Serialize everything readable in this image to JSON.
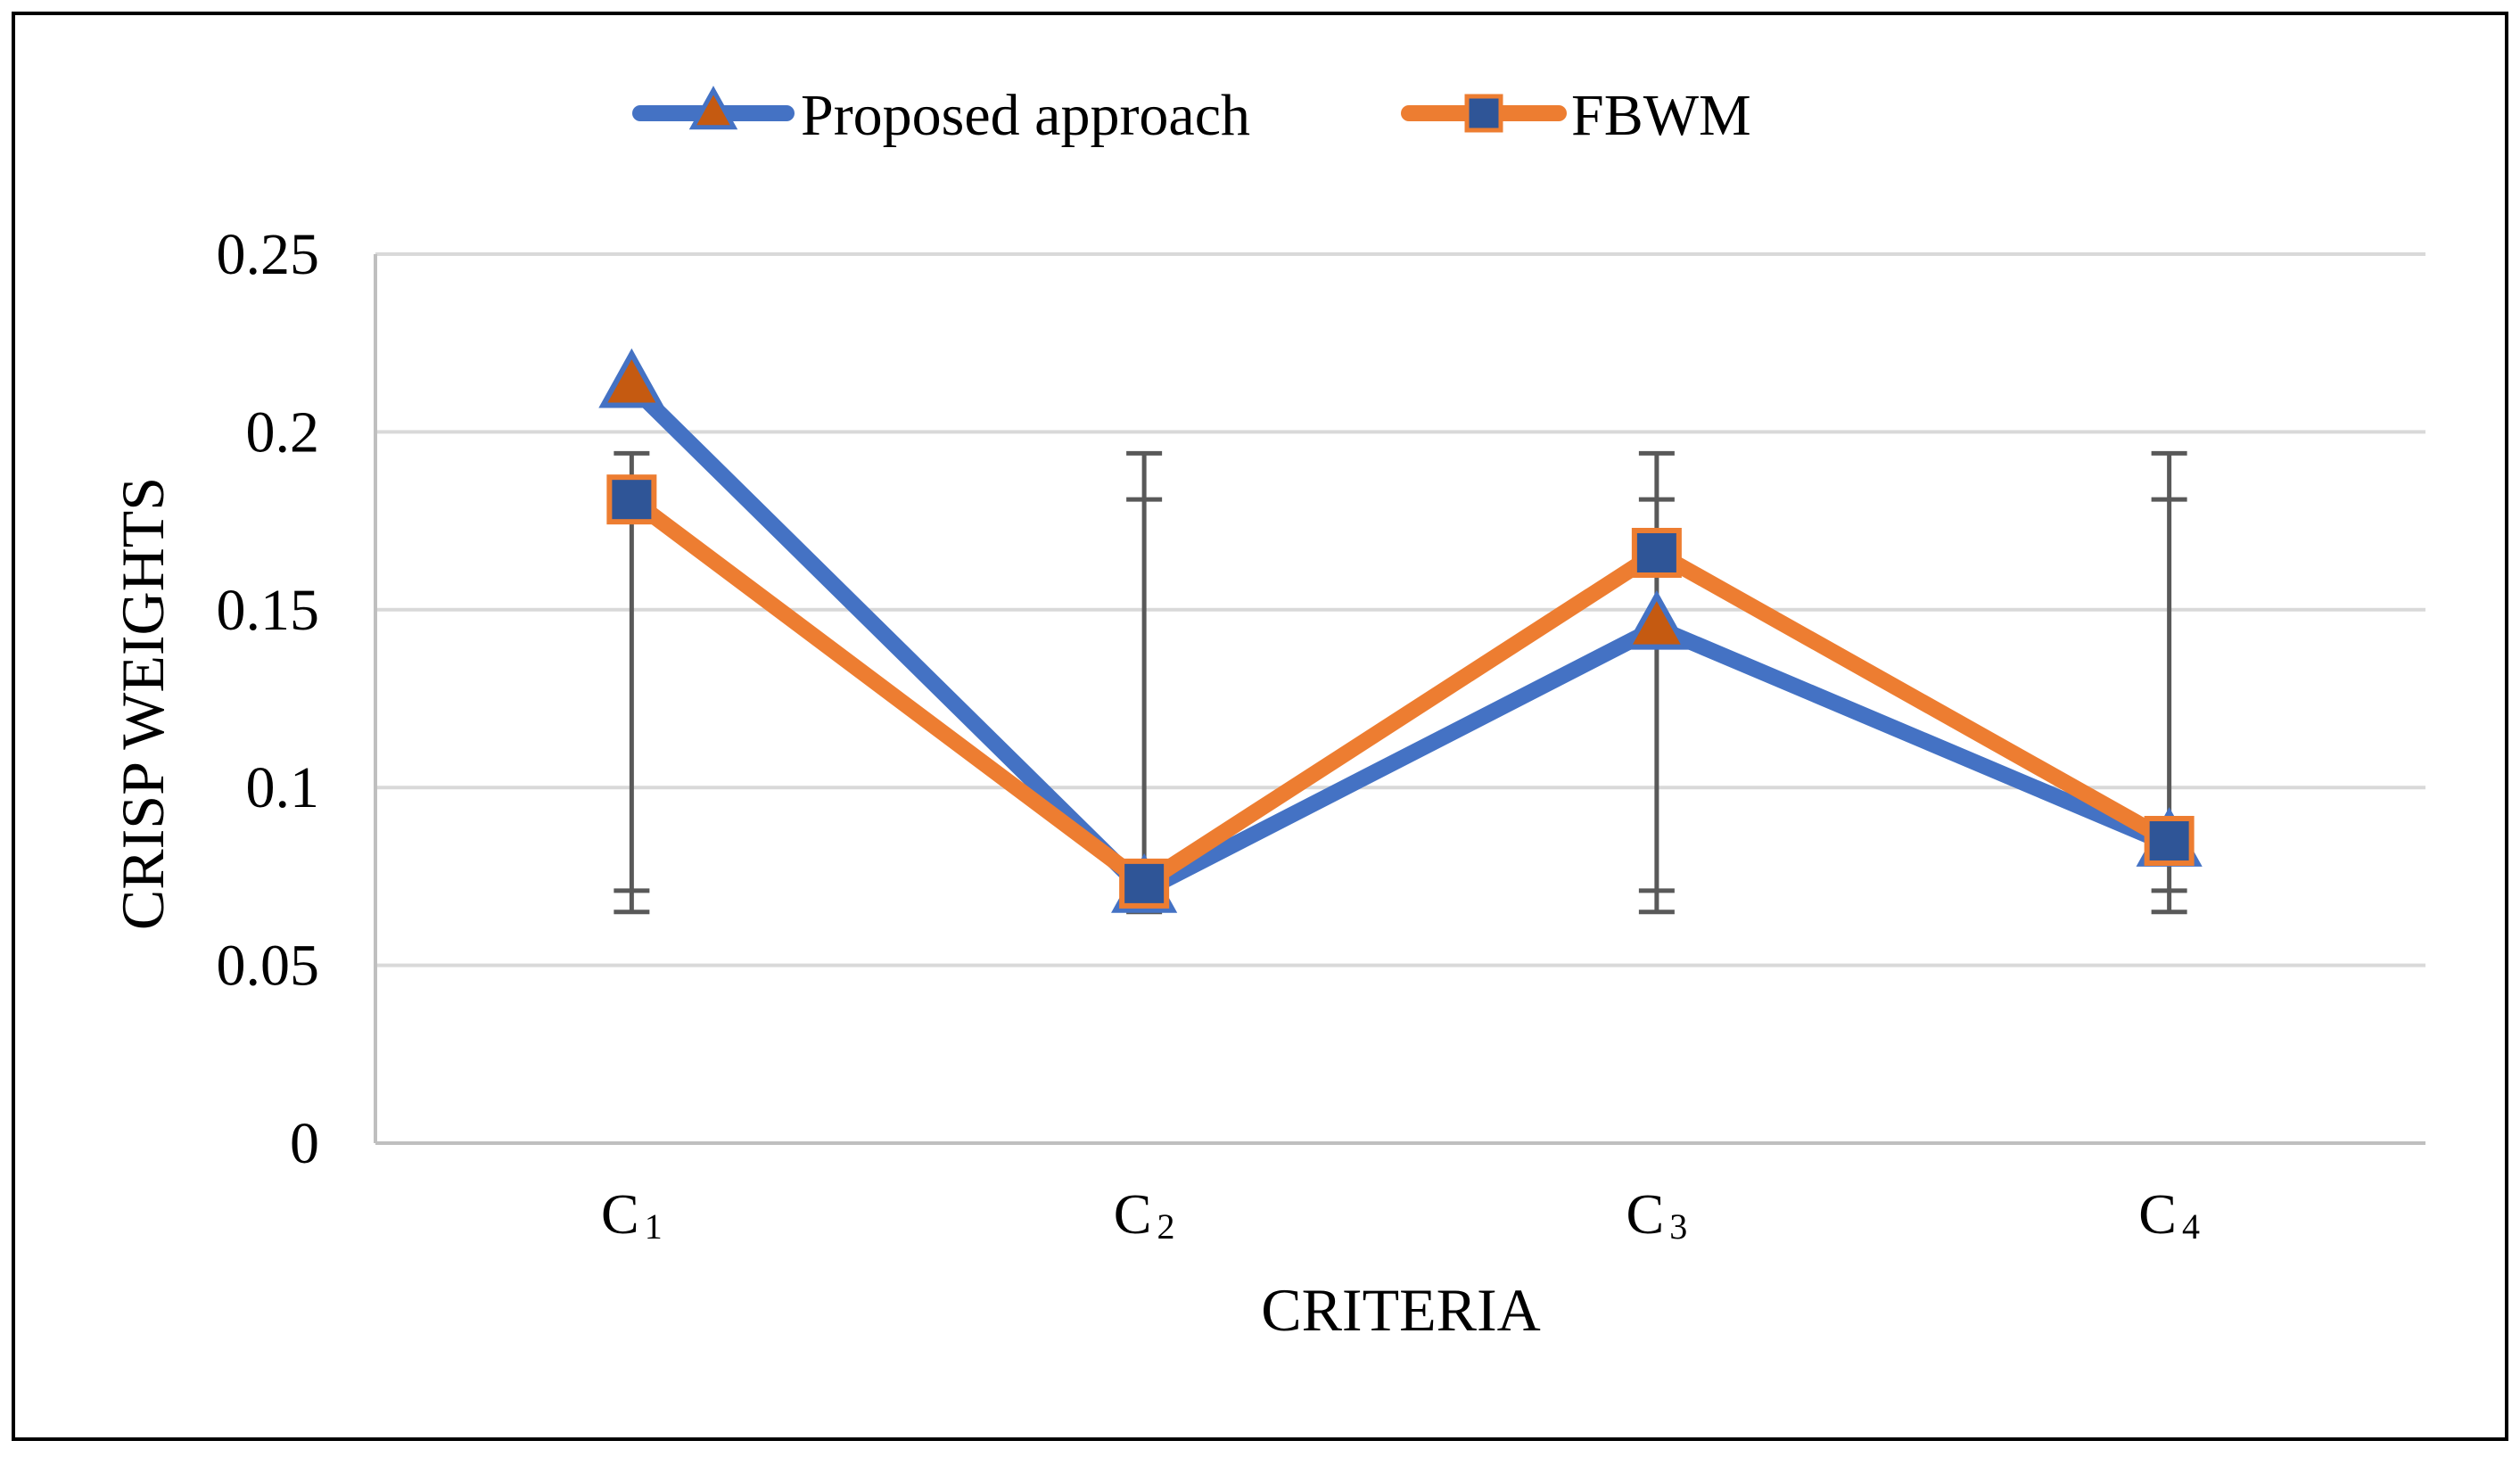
{
  "chart_data": {
    "type": "line",
    "title": "",
    "xlabel": "CRITERIA",
    "ylabel": "CRISP WEIGHTS",
    "categories": [
      {
        "letter": "C",
        "sub": "1"
      },
      {
        "letter": "C",
        "sub": "2"
      },
      {
        "letter": "C",
        "sub": "3"
      },
      {
        "letter": "C",
        "sub": "4"
      }
    ],
    "ylim": [
      0,
      0.25
    ],
    "yticks": [
      0,
      0.05,
      0.1,
      0.15,
      0.2,
      0.25
    ],
    "ytick_labels": [
      "0",
      "0.05",
      "0.1",
      "0.15",
      "0.2",
      "0.25"
    ],
    "grid": true,
    "legend_position": "top-center",
    "series": [
      {
        "name": "Proposed approach",
        "marker": "triangle",
        "line_color": "#4472C4",
        "marker_fill": "#C55A11",
        "marker_edge": "#4472C4",
        "values": [
          0.213,
          0.071,
          0.145,
          0.084
        ]
      },
      {
        "name": "FBWM",
        "marker": "square",
        "line_color": "#ED7D31",
        "marker_fill": "#2F5597",
        "marker_edge": "#ED7D31",
        "values": [
          0.181,
          0.073,
          0.166,
          0.085
        ]
      }
    ],
    "error_bars": {
      "color": "#595959",
      "ranges": [
        {
          "low": 0.065,
          "low_inner": 0.071,
          "high_inner": 0.181,
          "high": 0.194
        },
        {
          "low": 0.065,
          "low_inner": 0.071,
          "high_inner": 0.181,
          "high": 0.194
        },
        {
          "low": 0.065,
          "low_inner": 0.071,
          "high_inner": 0.181,
          "high": 0.194
        },
        {
          "low": 0.065,
          "low_inner": 0.071,
          "high_inner": 0.181,
          "high": 0.194
        }
      ]
    },
    "gridline_color": "#D9D9D9",
    "axis_color": "#BFBFBF"
  }
}
